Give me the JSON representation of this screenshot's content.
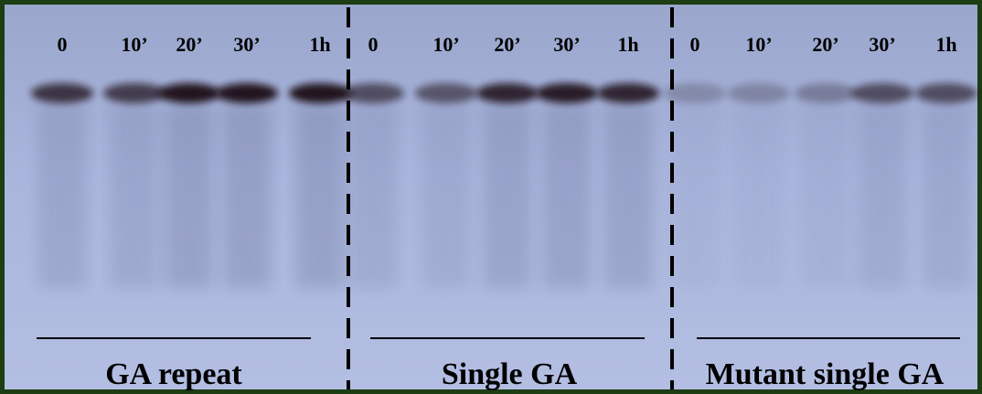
{
  "panels": [
    {
      "lanes": [
        "0",
        "10’",
        "20’",
        "30’",
        "1h"
      ],
      "label": "GA repeat"
    },
    {
      "lanes": [
        "0",
        "10’",
        "20’",
        "30’",
        "1h"
      ],
      "label": "Single GA"
    },
    {
      "lanes": [
        "0",
        "10’",
        "20’",
        "30’",
        "1h"
      ],
      "label": "Mutant single GA"
    }
  ]
}
